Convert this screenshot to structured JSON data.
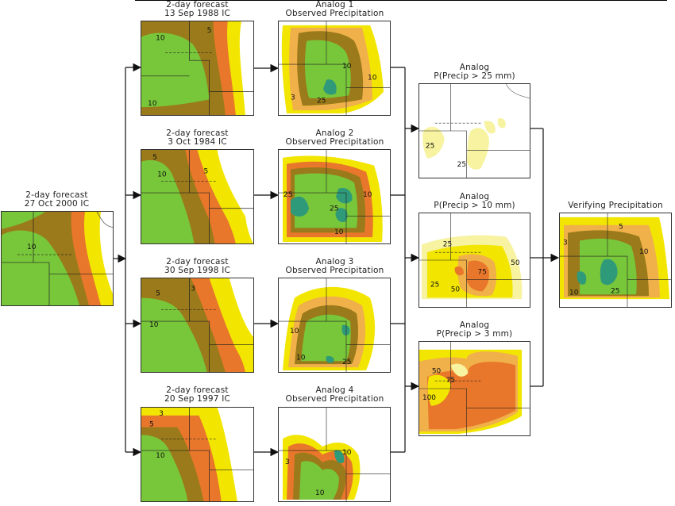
{
  "nodes": {
    "current_forecast": {
      "line1": "2-day forecast",
      "line2": "27 Oct 2000 IC"
    },
    "forecast_1": {
      "line1": "2-day forecast",
      "line2": "13 Sep 1988 IC"
    },
    "forecast_2": {
      "line1": "2-day forecast",
      "line2": "3 Oct 1984 IC"
    },
    "forecast_3": {
      "line1": "2-day forecast",
      "line2": "30 Sep 1998 IC"
    },
    "forecast_4": {
      "line1": "2-day forecast",
      "line2": "20 Sep 1997 IC"
    },
    "analog_1": {
      "line1": "Analog 1",
      "line2": "Observed Precipitation"
    },
    "analog_2": {
      "line1": "Analog 2",
      "line2": "Observed Precipitation"
    },
    "analog_3": {
      "line1": "Analog 3",
      "line2": "Observed Precipitation"
    },
    "analog_4": {
      "line1": "Analog 4",
      "line2": "Observed Precipitation"
    },
    "prob_25": {
      "line1": "Analog",
      "line2": "P(Precip > 25 mm)"
    },
    "prob_10": {
      "line1": "Analog",
      "line2": "P(Precip > 10 mm)"
    },
    "prob_3": {
      "line1": "Analog",
      "line2": "P(Precip > 3 mm)"
    },
    "verifying": {
      "line1": "Verifying Precipitation"
    }
  },
  "contour_labels": {
    "current_forecast": [
      "10"
    ],
    "forecast_1": [
      "10",
      "5",
      "10"
    ],
    "forecast_2": [
      "5",
      "10",
      "5"
    ],
    "forecast_3": [
      "5",
      "3",
      "10"
    ],
    "forecast_4": [
      "3",
      "5",
      "10"
    ],
    "analog_1": [
      "3",
      "10",
      "25",
      "10"
    ],
    "analog_2": [
      "25",
      "10",
      "10",
      "25"
    ],
    "analog_3": [
      "10",
      "10",
      "25"
    ],
    "analog_4": [
      "3",
      "10",
      "10"
    ],
    "prob_25": [
      "25",
      "25"
    ],
    "prob_10": [
      "25",
      "50",
      "25",
      "50",
      "75"
    ],
    "prob_3": [
      "50",
      "75",
      "100"
    ],
    "verifying": [
      "5",
      "10",
      "10",
      "25",
      "3"
    ]
  },
  "colors": {
    "light_yellow": "#f7f3a0",
    "yellow": "#f2e600",
    "light_orange": "#f1b14a",
    "orange": "#e9772b",
    "olive": "#9a7a1a",
    "green": "#78c63a",
    "teal": "#2e9a7a",
    "line": "#111111"
  }
}
